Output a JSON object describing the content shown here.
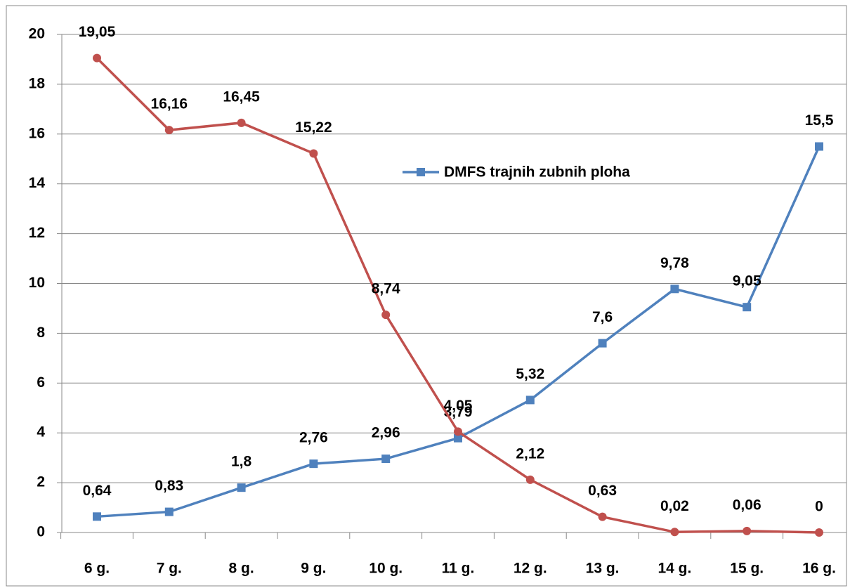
{
  "chart_data": {
    "type": "line",
    "categories": [
      "6 g.",
      "7 g.",
      "8 g.",
      "9 g.",
      "10 g.",
      "11 g.",
      "12 g.",
      "13 g.",
      "14 g.",
      "15 g.",
      "16 g."
    ],
    "series": [
      {
        "name": "DMFS trajnih zubnih ploha",
        "color": "#4f81bd",
        "marker": "square",
        "values": [
          0.64,
          0.83,
          1.8,
          2.76,
          2.96,
          3.79,
          5.32,
          7.6,
          9.78,
          9.05,
          15.5
        ],
        "value_labels": [
          "0,64",
          "0,83",
          "1,8",
          "2,76",
          "2,96",
          "3,79",
          "5,32",
          "7,6",
          "9,78",
          "9,05",
          "15,5"
        ]
      },
      {
        "color": "#c0504d",
        "marker": "circle",
        "values": [
          19.05,
          16.16,
          16.45,
          15.22,
          8.74,
          4.05,
          2.12,
          0.63,
          0.02,
          0.06,
          0
        ],
        "value_labels": [
          "19,05",
          "16,16",
          "16,45",
          "15,22",
          "8,74",
          "4,05",
          "2,12",
          "0,63",
          "0,02",
          "0,06",
          "0"
        ]
      }
    ],
    "ylim": [
      0,
      20
    ],
    "yticks": [
      0,
      2,
      4,
      6,
      8,
      10,
      12,
      14,
      16,
      18,
      20
    ],
    "grid": true
  }
}
